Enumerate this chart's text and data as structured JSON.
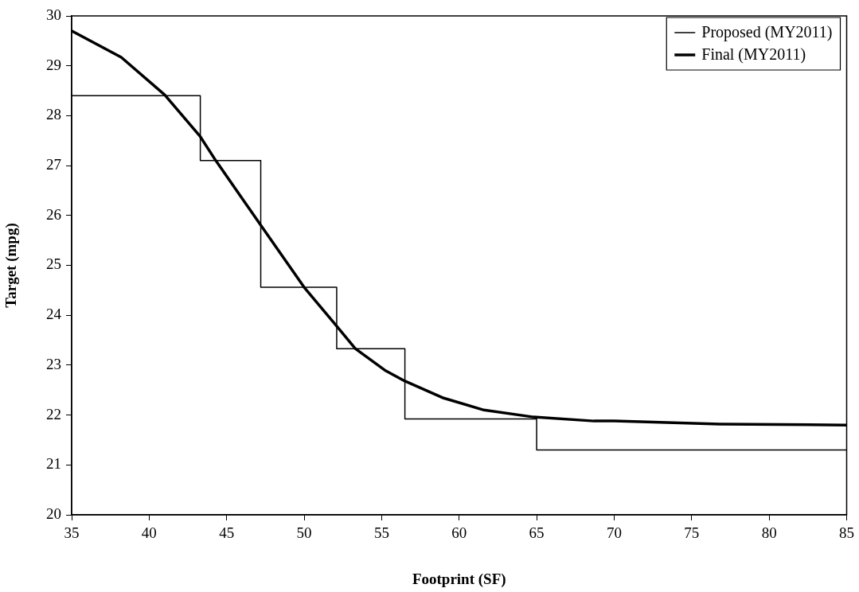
{
  "chart_data": {
    "type": "line",
    "xlabel": "Footprint (SF)",
    "ylabel": "Target (mpg)",
    "xlim": [
      35,
      85
    ],
    "xticks": [
      35,
      40,
      45,
      50,
      55,
      60,
      65,
      70,
      75,
      80,
      85
    ],
    "ylim": [
      20,
      30
    ],
    "yticks": [
      20,
      21,
      22,
      23,
      24,
      25,
      26,
      27,
      28,
      29,
      30
    ],
    "grid": false,
    "legend": "top right",
    "marker": "none",
    "series": [
      {
        "name": "Proposed (MY2011)",
        "type": "step",
        "color": "#000000",
        "x": [
          35,
          43.3,
          47.2,
          52.1,
          56.5,
          65,
          85
        ],
        "values": [
          28.4,
          27.1,
          24.56,
          23.33,
          21.92,
          21.3,
          21.3
        ]
      },
      {
        "name": "Final (MY2011)",
        "type": "line",
        "color": "#000000",
        "x": [
          35,
          38.2,
          41,
          43.3,
          44.3,
          47.3,
          50,
          52.1,
          53.3,
          55.2,
          56.5,
          59,
          61.6,
          64.8,
          68.7,
          70,
          76.8,
          85
        ],
        "values": [
          29.7,
          29.17,
          28.42,
          27.58,
          27.1,
          25.76,
          24.56,
          23.78,
          23.33,
          22.9,
          22.68,
          22.34,
          22.1,
          21.96,
          21.88,
          21.88,
          21.82,
          21.8
        ]
      }
    ]
  }
}
